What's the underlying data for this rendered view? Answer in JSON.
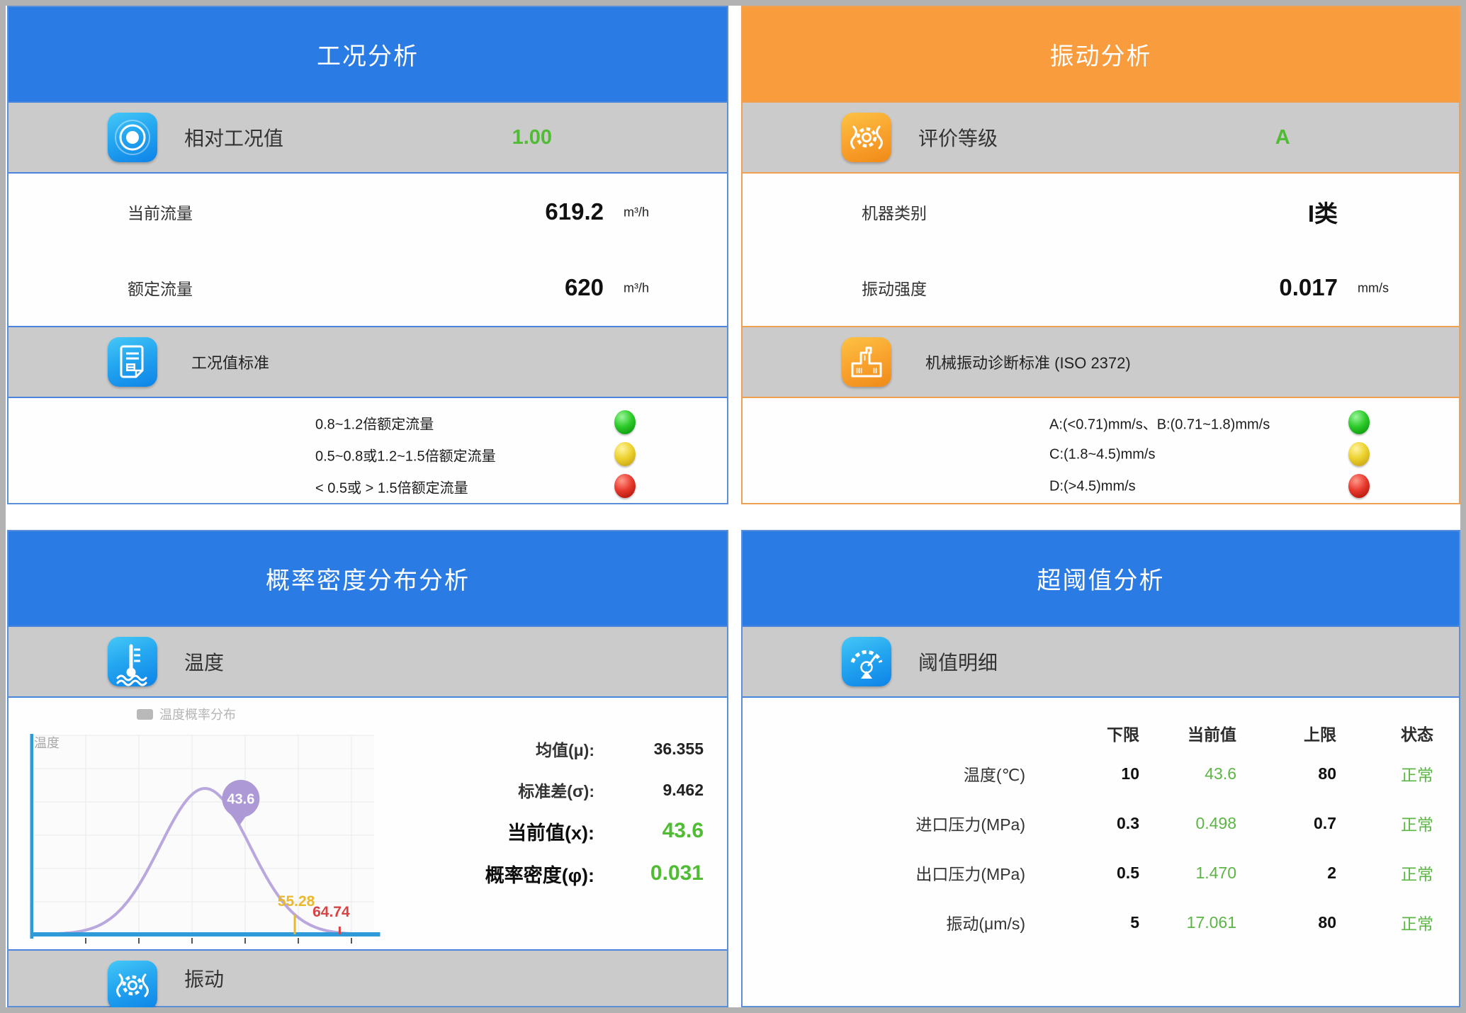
{
  "colors": {
    "accent_blue": "#2a7ce4",
    "accent_orange": "#f99c3d",
    "panel_border_blue": "#5b8fd8",
    "panel_border_orange": "#eda156",
    "gray_row": "#cbcbcb",
    "value_green": "#4fbc34",
    "table_green": "#5cb544",
    "light_green": "#2ecb2a",
    "light_yellow": "#ecd22e",
    "light_red": "#e83b2f"
  },
  "panels": {
    "condition": {
      "title": "工况分析",
      "feature": {
        "icon": "target-icon",
        "label": "相对工况值",
        "value": "1.00"
      },
      "metrics": [
        {
          "label": "当前流量",
          "value": "619.2",
          "unit": "m³/h"
        },
        {
          "label": "额定流量",
          "value": "620",
          "unit": "m³/h"
        }
      ],
      "standard": {
        "icon": "document-icon",
        "label": "工况值标准"
      },
      "criteria": [
        {
          "text": "0.8~1.2倍额定流量",
          "light": "green"
        },
        {
          "text": "0.5~0.8或1.2~1.5倍额定流量",
          "light": "yellow"
        },
        {
          "text": "< 0.5或 > 1.5倍额定流量",
          "light": "red"
        }
      ]
    },
    "vibration": {
      "title": "振动分析",
      "feature": {
        "icon": "vibration-gear-icon",
        "label": "评价等级",
        "value": "A"
      },
      "metrics": [
        {
          "label": "机器类别",
          "value": "I类",
          "unit": ""
        },
        {
          "label": "振动强度",
          "value": "0.017",
          "unit": "mm/s"
        }
      ],
      "standard": {
        "icon": "machine-standard-icon",
        "label": "机械振动诊断标准 (ISO 2372)"
      },
      "criteria": [
        {
          "text": "A:(<0.71)mm/s、B:(0.71~1.8)mm/s",
          "light": "green"
        },
        {
          "text": "C:(1.8~4.5)mm/s",
          "light": "yellow"
        },
        {
          "text": "D:(>4.5)mm/s",
          "light": "red"
        }
      ]
    },
    "probability": {
      "title": "概率密度分布分析",
      "section_temperature": {
        "icon": "thermometer-icon",
        "label": "温度"
      },
      "section_vibration": {
        "icon": "vibration-gear-icon",
        "label": "振动"
      },
      "legend": "温度概率分布",
      "axis_label": "温度",
      "stats": [
        {
          "label": "均值(μ):",
          "value": "36.355"
        },
        {
          "label": "标准差(σ):",
          "value": "9.462"
        },
        {
          "label": "当前值(x):",
          "value": "43.6"
        },
        {
          "label": "概率密度(φ):",
          "value": "0.031"
        }
      ]
    },
    "threshold": {
      "title": "超阈值分析",
      "feature": {
        "icon": "gauge-icon",
        "label": "阈值明细"
      },
      "table": {
        "headers": [
          "下限",
          "当前值",
          "上限",
          "状态"
        ],
        "rows": [
          {
            "label": "温度(℃)",
            "low": "10",
            "current": "43.6",
            "high": "80",
            "status": "正常"
          },
          {
            "label": "进口压力(MPa)",
            "low": "0.3",
            "current": "0.498",
            "high": "0.7",
            "status": "正常"
          },
          {
            "label": "出口压力(MPa)",
            "low": "0.5",
            "current": "1.470",
            "high": "2",
            "status": "正常"
          },
          {
            "label": "振动(μm/s)",
            "low": "5",
            "current": "17.061",
            "high": "80",
            "status": "正常"
          }
        ]
      }
    }
  },
  "chart_data": {
    "type": "line",
    "subtype": "normal-distribution-curve",
    "title": "温度概率分布",
    "legend": [
      "温度概率分布"
    ],
    "axis_label": "温度",
    "mean": 36.355,
    "std": 9.462,
    "current_x": 43.6,
    "current_density": 0.031,
    "x_range": [
      0,
      72
    ],
    "grid": true,
    "legend_position": "top-left",
    "markers": [
      {
        "type": "balloon",
        "x": 43.6,
        "label": "43.6",
        "color": "#ac99d6"
      },
      {
        "type": "vline",
        "x": 55.28,
        "label": "55.28",
        "color": "#e9b82d"
      },
      {
        "type": "tick",
        "x": 64.74,
        "label": "64.74",
        "color": "#d84343"
      }
    ],
    "curve_color": "#b9a7de",
    "axis_color": "#2f9ad8",
    "grid_color": "#eaeaea"
  }
}
